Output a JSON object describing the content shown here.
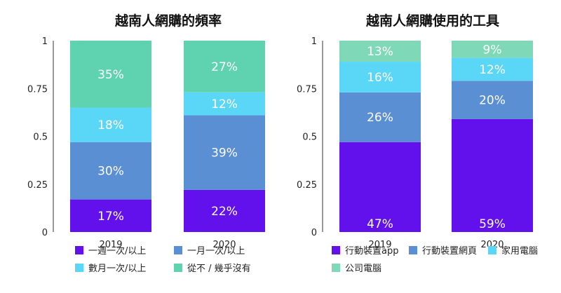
{
  "chart_data": [
    {
      "type": "bar",
      "stacked": true,
      "title": "越南人網購的頻率",
      "categories": [
        "2019",
        "2020"
      ],
      "ylim": [
        0,
        1
      ],
      "yticks": [
        "0",
        "0.25",
        "0.5",
        "0.75",
        "1"
      ],
      "grid": false,
      "legend_position": "bottom",
      "series": [
        {
          "name": "一週一次/以上",
          "color": "#6311ec",
          "values": [
            0.17,
            0.22
          ],
          "labels": [
            "17%",
            "22%"
          ]
        },
        {
          "name": "一月一次/以上",
          "color": "#5b8fd4",
          "values": [
            0.3,
            0.39
          ],
          "labels": [
            "30%",
            "39%"
          ]
        },
        {
          "name": "數月一次/以上",
          "color": "#5ad7f7",
          "values": [
            0.18,
            0.12
          ],
          "labels": [
            "18%",
            "12%"
          ]
        },
        {
          "name": "從不 / 幾乎沒有",
          "color": "#5fd3b0",
          "values": [
            0.35,
            0.27
          ],
          "labels": [
            "35%",
            "27%"
          ]
        }
      ]
    },
    {
      "type": "bar",
      "stacked": true,
      "title": "越南人網購使用的工具",
      "categories": [
        "2019",
        "2020"
      ],
      "ylim": [
        0,
        1
      ],
      "yticks": [
        "0",
        "0.25",
        "0.5",
        "0.75",
        "1"
      ],
      "grid": false,
      "legend_position": "bottom",
      "series": [
        {
          "name": "行動裝置app",
          "color": "#6311ec",
          "values": [
            0.47,
            0.59
          ],
          "labels": [
            "47%",
            "59%"
          ]
        },
        {
          "name": "行動裝置網頁",
          "color": "#5b8fd4",
          "values": [
            0.26,
            0.2
          ],
          "labels": [
            "26%",
            "20%"
          ]
        },
        {
          "name": "家用電腦",
          "color": "#5ad7f7",
          "values": [
            0.16,
            0.12
          ],
          "labels": [
            "16%",
            "12%"
          ]
        },
        {
          "name": "公司電腦",
          "color": "#7fd9b9",
          "values": [
            0.13,
            0.09
          ],
          "labels": [
            "13%",
            "9%"
          ]
        }
      ]
    }
  ]
}
